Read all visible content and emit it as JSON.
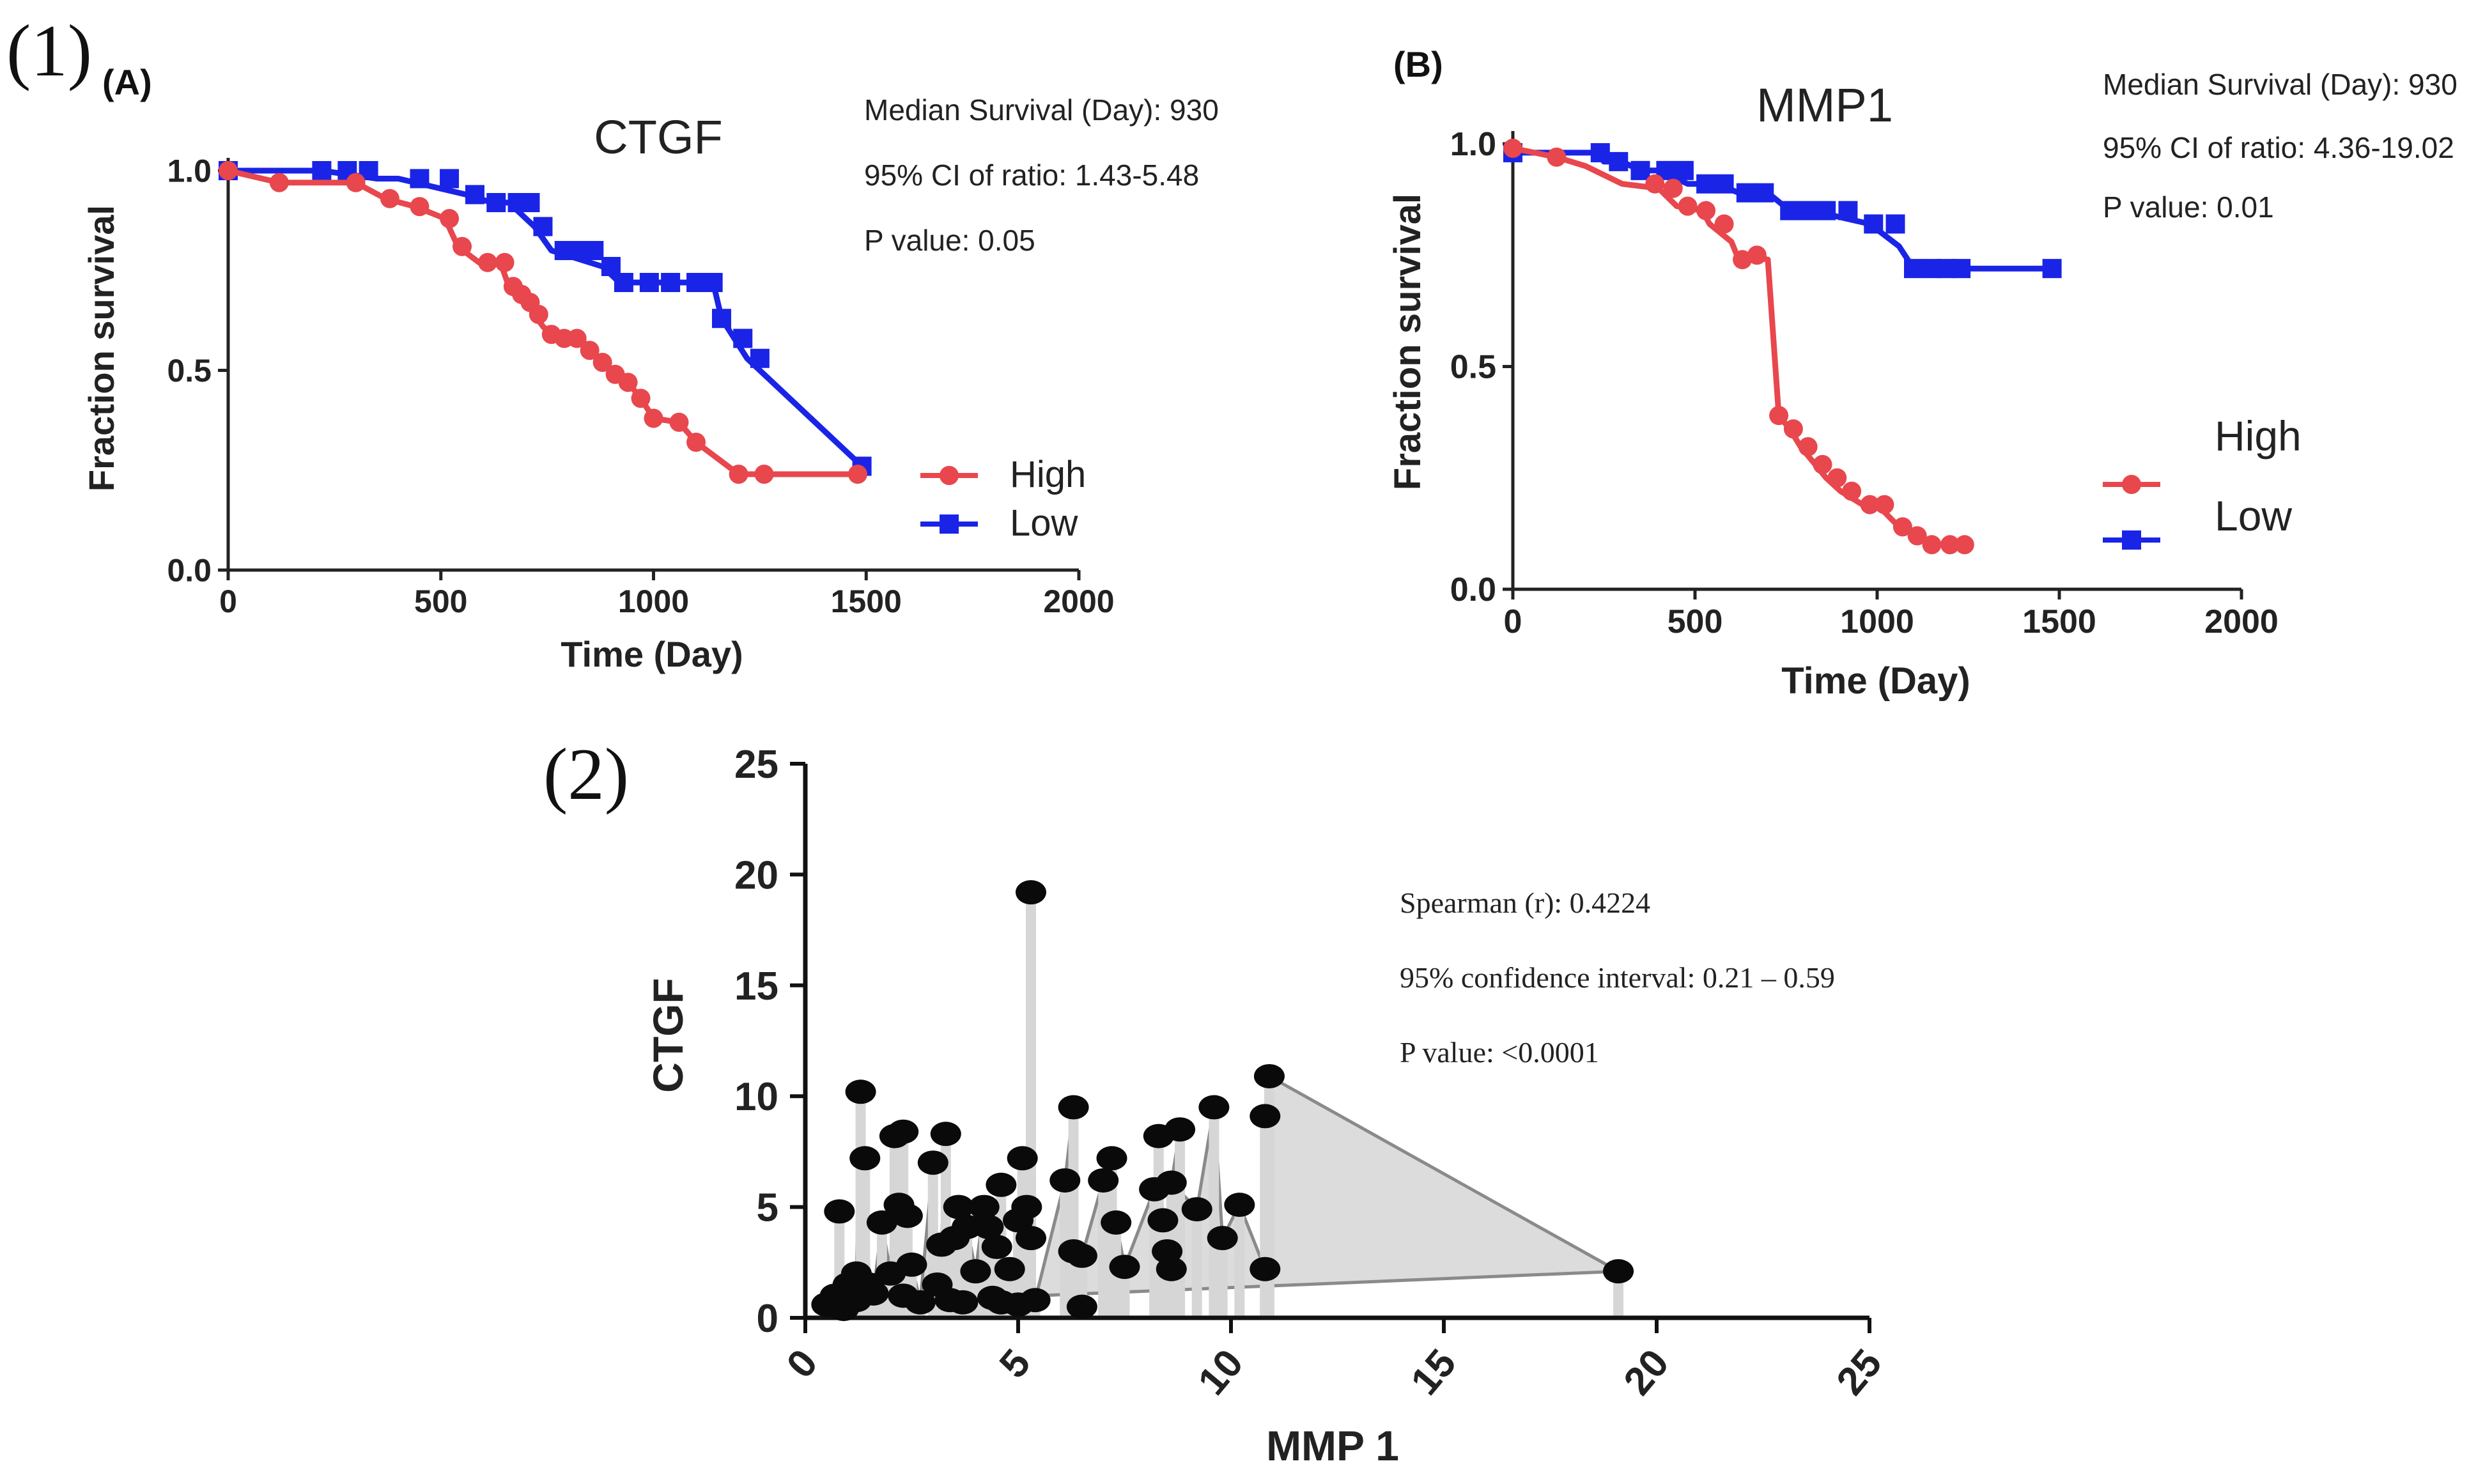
{
  "figure": {
    "panel1_label": "(1)",
    "panel2_label": "(2)"
  },
  "colors": {
    "high": "#e8474d",
    "low": "#1a24e6",
    "scatter_fill": "#d6d6d6",
    "scatter_line": "#8a8a8a",
    "point": "#0a0a0a"
  },
  "chart_data": [
    {
      "type": "line",
      "subtype": "kaplan-meier",
      "panel": "(A)",
      "title": "CTGF",
      "xlabel": "Time (Day)",
      "ylabel": "Fraction survival",
      "xlim": [
        0,
        2000
      ],
      "ylim": [
        0,
        1
      ],
      "xticks": [
        "0",
        "500",
        "1000",
        "1500",
        "2000"
      ],
      "yticks": [
        "0.0",
        "0.5",
        "1.0"
      ],
      "legend": [
        "High",
        "Low"
      ],
      "stats": [
        "Median Survival (Day): 930",
        "95% CI of ratio: 1.43-5.48",
        "P value: 0.05"
      ],
      "series": [
        {
          "name": "High",
          "x": [
            0,
            120,
            300,
            370,
            440,
            510,
            540,
            590,
            640,
            660,
            680,
            700,
            720,
            740,
            760,
            790,
            830,
            850,
            880,
            910,
            940,
            970,
            1000,
            1060,
            1100,
            1200,
            1260,
            1480
          ],
          "y": [
            1.0,
            0.97,
            0.97,
            0.93,
            0.91,
            0.88,
            0.81,
            0.77,
            0.77,
            0.71,
            0.69,
            0.67,
            0.64,
            0.61,
            0.59,
            0.58,
            0.58,
            0.55,
            0.52,
            0.49,
            0.47,
            0.43,
            0.38,
            0.37,
            0.32,
            0.24,
            0.24,
            0.24
          ],
          "markers": [
            0,
            120,
            300,
            380,
            450,
            520,
            550,
            610,
            650,
            670,
            690,
            710,
            730,
            760,
            790,
            820,
            850,
            880,
            910,
            940,
            970,
            1000,
            1060,
            1100,
            1200,
            1260,
            1480
          ]
        },
        {
          "name": "Low",
          "x": [
            0,
            220,
            350,
            400,
            560,
            620,
            660,
            720,
            760,
            880,
            920,
            1140,
            1160,
            1190,
            1220,
            1490
          ],
          "y": [
            1.0,
            1.0,
            0.98,
            0.98,
            0.94,
            0.92,
            0.92,
            0.86,
            0.8,
            0.76,
            0.72,
            0.72,
            0.63,
            0.58,
            0.53,
            0.26
          ],
          "markers": [
            0,
            220,
            280,
            330,
            450,
            520,
            580,
            630,
            680,
            710,
            740,
            790,
            830,
            860,
            900,
            930,
            990,
            1040,
            1100,
            1140,
            1160,
            1210,
            1250,
            1490
          ]
        }
      ]
    },
    {
      "type": "line",
      "subtype": "kaplan-meier",
      "panel": "(B)",
      "title": "MMP1",
      "xlabel": "Time (Day)",
      "ylabel": "Fraction survival",
      "xlim": [
        0,
        2000
      ],
      "ylim": [
        0,
        1
      ],
      "xticks": [
        "0",
        "500",
        "1000",
        "1500",
        "2000"
      ],
      "yticks": [
        "0.0",
        "0.5",
        "1.0"
      ],
      "legend": [
        "High",
        "Low"
      ],
      "stats": [
        "Median Survival (Day): 930",
        "95% CI of ratio: 4.36-19.02",
        "P value: 0.01"
      ],
      "series": [
        {
          "name": "High",
          "x": [
            0,
            120,
            200,
            300,
            400,
            450,
            520,
            540,
            600,
            620,
            640,
            700,
            730,
            760,
            790,
            830,
            860,
            900,
            960,
            1000,
            1060,
            1110,
            1140,
            1240
          ],
          "y": [
            0.99,
            0.97,
            0.95,
            0.91,
            0.9,
            0.86,
            0.85,
            0.82,
            0.78,
            0.74,
            0.75,
            0.74,
            0.39,
            0.36,
            0.32,
            0.28,
            0.25,
            0.22,
            0.19,
            0.19,
            0.14,
            0.12,
            0.1,
            0.1
          ],
          "markers": [
            0,
            120,
            390,
            440,
            480,
            530,
            580,
            630,
            670,
            730,
            770,
            810,
            850,
            890,
            930,
            980,
            1020,
            1070,
            1110,
            1150,
            1200,
            1240
          ]
        },
        {
          "name": "Low",
          "x": [
            0,
            230,
            250,
            300,
            350,
            400,
            480,
            560,
            620,
            700,
            760,
            820,
            980,
            1060,
            1100,
            1480
          ],
          "y": [
            0.98,
            0.98,
            0.96,
            0.96,
            0.94,
            0.94,
            0.91,
            0.91,
            0.89,
            0.89,
            0.85,
            0.85,
            0.82,
            0.77,
            0.72,
            0.72
          ],
          "markers": [
            0,
            240,
            290,
            350,
            420,
            470,
            530,
            580,
            640,
            690,
            760,
            810,
            860,
            920,
            990,
            1050,
            1100,
            1150,
            1190,
            1230,
            1480
          ]
        }
      ]
    },
    {
      "type": "scatter",
      "panel": "(2)",
      "title": "",
      "xlabel": "MMP 1",
      "ylabel": "CTGF",
      "xlim": [
        0,
        25
      ],
      "ylim": [
        0,
        25
      ],
      "xticks": [
        "0",
        "5",
        "10",
        "15",
        "20"
      ],
      "xticks_last": "25",
      "yticks": [
        "0",
        "5",
        "10",
        "15",
        "20",
        "25"
      ],
      "stats": [
        "Spearman (r): 0.4224",
        "95% confidence interval: 0.21 – 0.59",
        "P value: <0.0001"
      ],
      "points": [
        [
          0.5,
          0.6
        ],
        [
          0.7,
          1.0
        ],
        [
          0.8,
          4.8
        ],
        [
          0.9,
          0.4
        ],
        [
          1.0,
          1.5
        ],
        [
          1.1,
          1.2
        ],
        [
          1.2,
          0.8
        ],
        [
          1.2,
          2.0
        ],
        [
          1.3,
          10.2
        ],
        [
          1.4,
          7.2
        ],
        [
          1.5,
          1.5
        ],
        [
          1.6,
          1.1
        ],
        [
          1.8,
          4.3
        ],
        [
          2.0,
          2.0
        ],
        [
          2.1,
          8.2
        ],
        [
          2.2,
          5.1
        ],
        [
          2.3,
          1.0
        ],
        [
          2.3,
          8.4
        ],
        [
          2.4,
          4.6
        ],
        [
          2.5,
          2.4
        ],
        [
          2.7,
          0.7
        ],
        [
          3.0,
          7.0
        ],
        [
          3.1,
          1.5
        ],
        [
          3.2,
          3.3
        ],
        [
          3.3,
          8.3
        ],
        [
          3.4,
          0.8
        ],
        [
          3.5,
          3.6
        ],
        [
          3.6,
          5.0
        ],
        [
          3.7,
          0.7
        ],
        [
          3.8,
          4.1
        ],
        [
          4.0,
          2.1
        ],
        [
          4.2,
          5.0
        ],
        [
          4.3,
          4.1
        ],
        [
          4.4,
          0.9
        ],
        [
          4.5,
          3.2
        ],
        [
          4.6,
          6.0
        ],
        [
          4.6,
          0.7
        ],
        [
          4.8,
          2.2
        ],
        [
          5.0,
          0.6
        ],
        [
          5.0,
          4.4
        ],
        [
          5.1,
          7.2
        ],
        [
          5.2,
          5.0
        ],
        [
          5.3,
          19.2
        ],
        [
          5.3,
          3.6
        ],
        [
          5.4,
          0.8
        ],
        [
          6.1,
          6.2
        ],
        [
          6.3,
          9.5
        ],
        [
          6.3,
          3.0
        ],
        [
          6.5,
          0.5
        ],
        [
          6.5,
          2.8
        ],
        [
          7.0,
          6.2
        ],
        [
          7.2,
          7.2
        ],
        [
          7.3,
          4.3
        ],
        [
          7.5,
          2.3
        ],
        [
          8.2,
          5.8
        ],
        [
          8.3,
          8.2
        ],
        [
          8.4,
          4.4
        ],
        [
          8.5,
          3.0
        ],
        [
          8.6,
          2.2
        ],
        [
          8.8,
          8.5
        ],
        [
          8.6,
          6.1
        ],
        [
          9.2,
          4.9
        ],
        [
          9.6,
          9.5
        ],
        [
          9.8,
          3.6
        ],
        [
          10.2,
          5.1
        ],
        [
          10.8,
          2.2
        ],
        [
          10.8,
          9.1
        ],
        [
          10.9,
          10.9
        ],
        [
          19.1,
          2.1
        ]
      ]
    }
  ]
}
